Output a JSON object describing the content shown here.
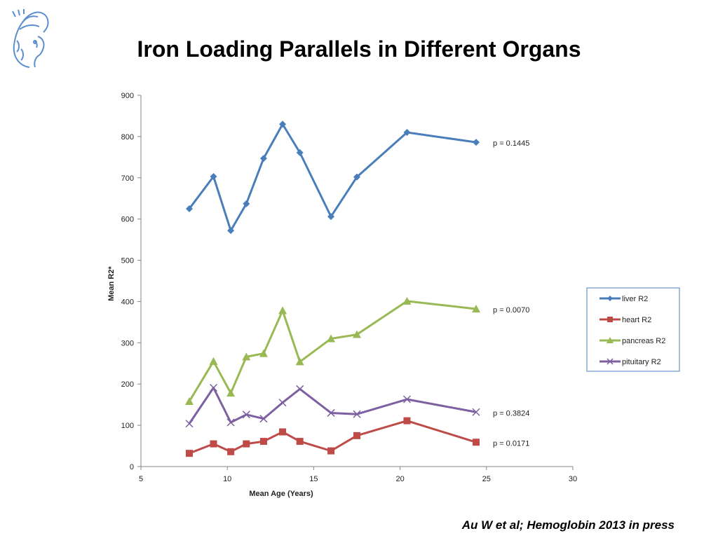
{
  "slide": {
    "title": "Iron Loading Parallels in Different Organs",
    "citation": "Au W et al; Hemoglobin 2013  in press",
    "logo_icon": "athena-head-icon",
    "logo_color": "#5b8fd0"
  },
  "chart_data": {
    "type": "line",
    "title": "",
    "xlabel": "Mean Age (Years)",
    "ylabel": "Mean R2*",
    "xlim": [
      5,
      30
    ],
    "ylim": [
      0,
      900
    ],
    "xticks": [
      5,
      10,
      15,
      20,
      25,
      30
    ],
    "yticks": [
      0,
      100,
      200,
      300,
      400,
      500,
      600,
      700,
      800,
      900
    ],
    "grid": false,
    "legend_position": "right",
    "series": [
      {
        "name": "liver R2",
        "color": "#4a7ebb",
        "marker": "diamond",
        "pvalue": "p = 0.1445",
        "x": [
          7.8,
          9.2,
          10.2,
          11.1,
          12.1,
          13.2,
          14.2,
          16.0,
          17.5,
          20.4,
          24.4
        ],
        "y": [
          625,
          703,
          572,
          637,
          747,
          830,
          761,
          606,
          702,
          810,
          786
        ]
      },
      {
        "name": "heart R2",
        "color": "#be4b48",
        "marker": "square",
        "pvalue": "p = 0.0171",
        "x": [
          7.8,
          9.2,
          10.2,
          11.1,
          12.1,
          13.2,
          14.2,
          16.0,
          17.5,
          20.4,
          24.4
        ],
        "y": [
          32,
          55,
          36,
          55,
          61,
          84,
          61,
          38,
          75,
          111,
          59
        ]
      },
      {
        "name": "pancreas R2",
        "color": "#98b954",
        "marker": "triangle",
        "pvalue": "p = 0.0070",
        "x": [
          7.8,
          9.2,
          10.2,
          11.1,
          12.1,
          13.2,
          14.2,
          16.0,
          17.5,
          20.4,
          24.4
        ],
        "y": [
          158,
          255,
          178,
          266,
          274,
          378,
          254,
          310,
          320,
          401,
          382
        ]
      },
      {
        "name": "pituitary R2",
        "color": "#7d60a0",
        "marker": "x",
        "pvalue": "p = 0.3824",
        "x": [
          7.8,
          9.2,
          10.2,
          11.1,
          12.1,
          13.2,
          14.2,
          16.0,
          17.5,
          20.4,
          24.4
        ],
        "y": [
          104,
          191,
          107,
          126,
          116,
          155,
          188,
          130,
          127,
          163,
          132
        ]
      }
    ]
  }
}
